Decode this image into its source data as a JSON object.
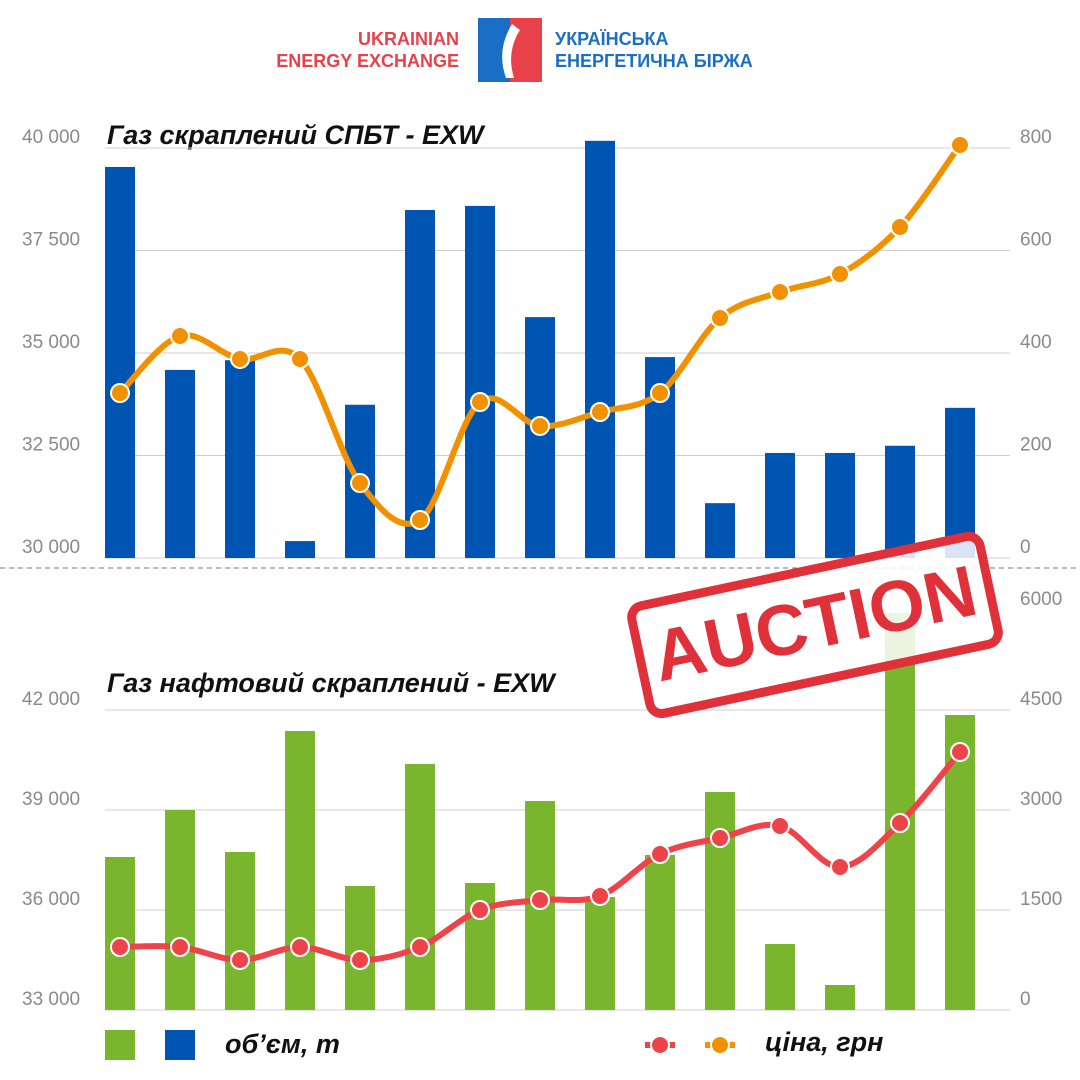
{
  "header": {
    "left": [
      "UKRAINIAN",
      "ENERGY EXCHANGE"
    ],
    "right": [
      "УКРАЇНСЬКА",
      "ЕНЕРГЕТИЧНА БІРЖА"
    ]
  },
  "stamp": "AUCTION",
  "legend": {
    "volume": "об’єм, т",
    "price": "ціна, грн"
  },
  "chart_data": [
    {
      "type": "combo",
      "title": "Газ скраплений СПБТ - EXW",
      "categories": [
        null,
        null,
        null,
        null,
        null,
        null,
        null,
        null,
        null,
        null,
        null,
        null,
        null,
        null,
        null
      ],
      "ylim": [
        30000,
        40000
      ],
      "yticks": [
        {
          "value": 30000,
          "label": "30 000"
        },
        {
          "value": 32500,
          "label": "32 500"
        },
        {
          "value": 35000,
          "label": "35 000"
        },
        {
          "value": 37500,
          "label": "37 500"
        },
        {
          "value": 40000,
          "label": "40 000"
        }
      ],
      "y2lim": [
        0,
        800
      ],
      "y2ticks": [
        0,
        200,
        400,
        600,
        800
      ],
      "grid": true,
      "series": [
        {
          "kind": "bar",
          "axis": "y2",
          "color": "#0055b3",
          "values": [
            763,
            367,
            386,
            33,
            299,
            679,
            687,
            470,
            814,
            392,
            107,
            205,
            205,
            219,
            293
          ]
        },
        {
          "kind": "line",
          "axis": "y",
          "color": "#f29100",
          "values": [
            34024,
            35415,
            34854,
            34854,
            31829,
            30927,
            33805,
            33220,
            33561,
            34024,
            35854,
            36488,
            36927,
            38073,
            40073
          ]
        }
      ]
    },
    {
      "type": "combo",
      "title": "Газ нафтовий скраплений - EXW",
      "categories": [
        null,
        null,
        null,
        null,
        null,
        null,
        null,
        null,
        null,
        null,
        null,
        null,
        null,
        null,
        null
      ],
      "ylim": [
        33000,
        45000
      ],
      "yticks": [
        {
          "value": 33000,
          "label": "33 000"
        },
        {
          "value": 36000,
          "label": "36 000"
        },
        {
          "value": 39000,
          "label": "39 000"
        },
        {
          "value": 42000,
          "label": "42 000"
        }
      ],
      "y2lim": [
        0,
        6000
      ],
      "y2ticks": [
        0,
        1500,
        3000,
        4500,
        6000
      ],
      "grid": true,
      "series": [
        {
          "kind": "bar",
          "axis": "y2",
          "color": "#7ab52e",
          "values": [
            2295,
            3000,
            2370,
            4185,
            1860,
            3690,
            1905,
            3135,
            1695,
            2325,
            3270,
            990,
            375,
            5955,
            4425
          ]
        },
        {
          "kind": "line",
          "axis": "y",
          "color": "#ee4449",
          "values": [
            34890,
            34890,
            34500,
            34890,
            34500,
            34890,
            36000,
            36300,
            36420,
            37680,
            38160,
            38520,
            37290,
            38610,
            40740
          ]
        }
      ]
    }
  ]
}
